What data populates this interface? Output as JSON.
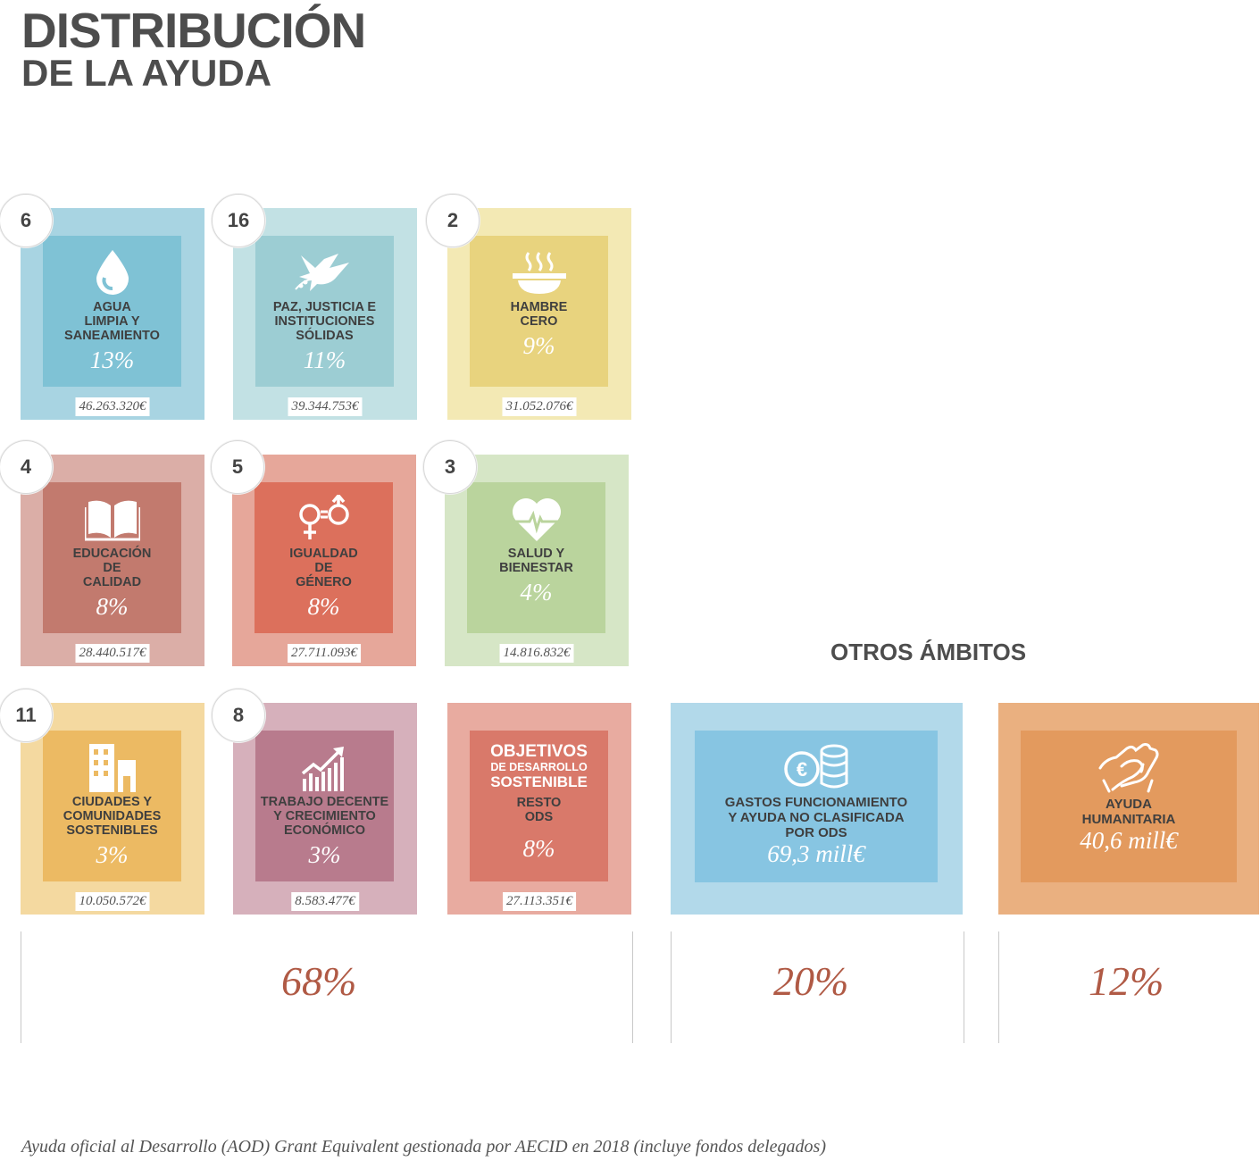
{
  "title": {
    "line1": "DISTRIBUCIÓN",
    "line2": "DE LA AYUDA"
  },
  "cards": [
    {
      "number": "6",
      "label": "AGUA\nLIMPIA Y\nSANEAMIENTO",
      "pct": "13%",
      "amount": "46.263.320€",
      "icon": "water-drop-icon",
      "outer": "#a8d4e2",
      "inner": "#7fc2d5"
    },
    {
      "number": "16",
      "label": "PAZ, JUSTICIA E\nINSTITUCIONES\nSÓLIDAS",
      "pct": "11%",
      "amount": "39.344.753€",
      "icon": "dove-icon",
      "outer": "#c2e1e4",
      "inner": "#9ccdd3"
    },
    {
      "number": "2",
      "label": "HAMBRE\nCERO",
      "pct": "9%",
      "amount": "31.052.076€",
      "icon": "bowl-icon",
      "outer": "#f3e9b4",
      "inner": "#e8d37e"
    },
    {
      "number": "4",
      "label": "EDUCACIÓN\nDE\nCALIDAD",
      "pct": "8%",
      "amount": "28.440.517€",
      "icon": "book-icon",
      "outer": "#dbaea7",
      "inner": "#c27a6e"
    },
    {
      "number": "5",
      "label": "IGUALDAD\nDE\nGÉNERO",
      "pct": "8%",
      "amount": "27.711.093€",
      "icon": "gender-equality-icon",
      "outer": "#e6a79a",
      "inner": "#dc705c"
    },
    {
      "number": "3",
      "label": "SALUD Y\nBIENESTAR",
      "pct": "4%",
      "amount": "14.816.832€",
      "icon": "heart-icon",
      "outer": "#d6e6c6",
      "inner": "#bad49d"
    },
    {
      "number": "11",
      "label": "CIUDADES Y\nCOMUNIDADES\nSOSTENIBLES",
      "pct": "3%",
      "amount": "10.050.572€",
      "icon": "buildings-icon",
      "outer": "#f4d9a0",
      "inner": "#ecba63"
    },
    {
      "number": "8",
      "label": "TRABAJO DECENTE\nY CRECIMIENTO\nECONÓMICO",
      "pct": "3%",
      "amount": "8.583.477€",
      "icon": "growth-chart-icon",
      "outer": "#d6b0bb",
      "inner": "#b87b8d"
    },
    {
      "number": "",
      "label": "RESTO\nODS",
      "pct": "8%",
      "amount": "27.113.351€",
      "icon": "sdg-logo-icon",
      "outer": "#e8aba0",
      "inner": "#d9796a",
      "logo": {
        "line1": "OBJETIVOS",
        "line2": "DE DESARROLLO",
        "line3": "SOSTENIBLE"
      }
    }
  ],
  "otros": {
    "heading": "OTROS ÁMBITOS",
    "cards": [
      {
        "label": "GASTOS FUNCIONAMIENTO\nY AYUDA NO CLASIFICADA\nPOR ODS",
        "value": "69,3 mill€",
        "icon": "coins-icon",
        "outer": "#b2d9ea",
        "inner": "#87c5e2"
      },
      {
        "label": "AYUDA\nHUMANITARIA",
        "value": "40,6 mill€",
        "icon": "helping-hands-icon",
        "outer": "#eab080",
        "inner": "#e39a5e"
      }
    ]
  },
  "totals": [
    "68%",
    "20%",
    "12%"
  ],
  "footer": "Ayuda oficial al Desarrollo (AOD) Grant Equivalent gestionada por AECID en 2018 (incluye fondos delegados)"
}
